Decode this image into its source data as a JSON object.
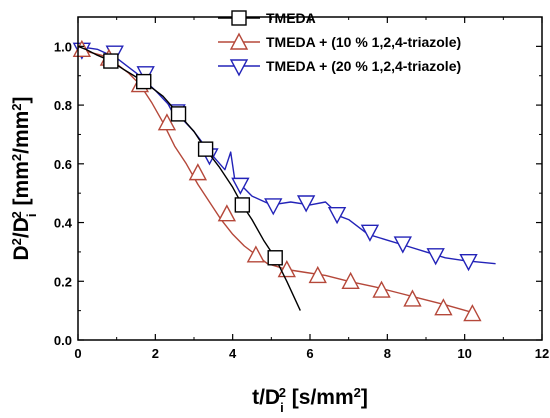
{
  "chart_data": {
    "type": "line",
    "xlabel": "t/D_i^2 [s/mm^2]",
    "ylabel": "D^2/D_i^2 [mm^2/mm^2]",
    "xlim": [
      0,
      12
    ],
    "ylim": [
      0.0,
      1.1
    ],
    "x_ticks": [
      "0",
      "2",
      "4",
      "6",
      "8",
      "10",
      "12"
    ],
    "y_ticks": [
      "0.0",
      "0.2",
      "0.4",
      "0.6",
      "0.8",
      "1.0"
    ],
    "grid": false,
    "legend_position": "top-right",
    "series": [
      {
        "name": "TMEDA",
        "color": "#000000",
        "marker": "square",
        "x": [
          0.0,
          0.2,
          0.5,
          0.85,
          1.2,
          1.7,
          2.2,
          2.6,
          3.0,
          3.3,
          3.65,
          4.0,
          4.25,
          4.5,
          4.8,
          5.1,
          5.4,
          5.75
        ],
        "y": [
          1.0,
          0.99,
          0.97,
          0.95,
          0.92,
          0.88,
          0.83,
          0.77,
          0.71,
          0.65,
          0.59,
          0.52,
          0.46,
          0.41,
          0.34,
          0.28,
          0.2,
          0.1
        ],
        "marker_x": [
          0.85,
          1.7,
          2.6,
          3.3,
          4.25,
          5.1
        ],
        "marker_y": [
          0.95,
          0.88,
          0.77,
          0.65,
          0.46,
          0.28
        ]
      },
      {
        "name": "TMEDA + (10 % 1,2,4-triazole)",
        "color": "#b5483a",
        "marker": "triangle-up",
        "x": [
          0.0,
          0.3,
          0.6,
          0.8,
          1.0,
          1.3,
          1.6,
          1.9,
          2.2,
          2.5,
          2.8,
          3.1,
          3.4,
          3.7,
          4.0,
          4.3,
          4.6,
          4.9,
          5.4,
          5.9,
          6.4,
          7.0,
          7.7,
          8.3,
          8.9,
          9.5,
          10.3
        ],
        "y": [
          1.0,
          0.98,
          0.97,
          0.96,
          0.94,
          0.91,
          0.87,
          0.81,
          0.74,
          0.66,
          0.6,
          0.53,
          0.47,
          0.41,
          0.36,
          0.32,
          0.29,
          0.26,
          0.24,
          0.23,
          0.22,
          0.2,
          0.18,
          0.16,
          0.14,
          0.12,
          0.09
        ],
        "marker_x": [
          0.1,
          0.8,
          1.6,
          2.3,
          3.1,
          3.85,
          4.6,
          5.4,
          6.2,
          7.05,
          7.85,
          8.65,
          9.45,
          10.2
        ],
        "marker_y": [
          0.99,
          0.96,
          0.87,
          0.74,
          0.57,
          0.43,
          0.29,
          0.24,
          0.22,
          0.2,
          0.17,
          0.14,
          0.11,
          0.09
        ]
      },
      {
        "name": "TMEDA + (20 % 1,2,4-triazole)",
        "color": "#2323b8",
        "marker": "triangle-down",
        "x": [
          0.0,
          0.5,
          1.0,
          1.5,
          2.0,
          2.5,
          3.0,
          3.4,
          3.8,
          3.95,
          4.05,
          4.2,
          4.5,
          5.0,
          5.5,
          6.0,
          6.4,
          6.8,
          7.0,
          7.5,
          8.0,
          8.5,
          9.0,
          9.5,
          10.0,
          10.8
        ],
        "y": [
          1.0,
          0.99,
          0.96,
          0.91,
          0.85,
          0.78,
          0.71,
          0.64,
          0.58,
          0.64,
          0.55,
          0.53,
          0.49,
          0.46,
          0.47,
          0.46,
          0.47,
          0.42,
          0.41,
          0.36,
          0.34,
          0.32,
          0.3,
          0.28,
          0.27,
          0.26
        ],
        "marker_x": [
          0.1,
          0.95,
          1.75,
          2.55,
          3.4,
          4.2,
          5.05,
          5.9,
          6.7,
          7.55,
          8.4,
          9.25,
          10.1
        ],
        "marker_y": [
          0.99,
          0.98,
          0.91,
          0.78,
          0.63,
          0.53,
          0.46,
          0.47,
          0.43,
          0.37,
          0.33,
          0.29,
          0.27
        ]
      }
    ]
  }
}
